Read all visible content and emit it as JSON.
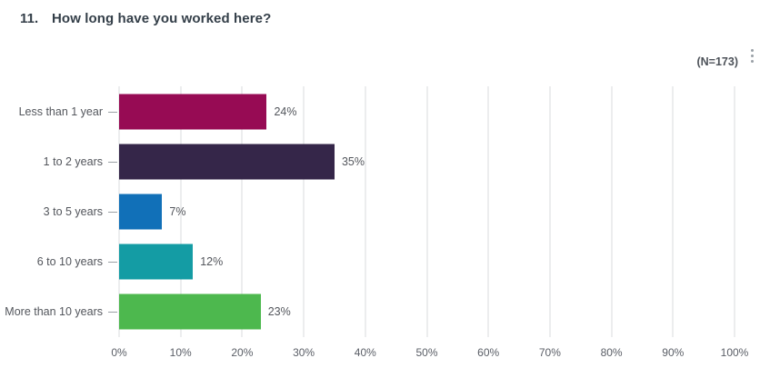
{
  "header": {
    "question_number": "11.",
    "question_title": "How long have you worked here?",
    "respondent_count": "(N=173)"
  },
  "icons": {
    "menu": "kebab-menu-icon"
  },
  "colors": {
    "title_text": "#333E48",
    "label_text": "#53565C",
    "axis_text": "#5A5E66",
    "gridline": "#D8DBDC",
    "kebab_dots": "#99A0A6"
  },
  "chart_data": {
    "type": "bar",
    "orientation": "horizontal",
    "title": "How long have you worked here?",
    "categories": [
      "Less than 1 year",
      "1 to 2 years",
      "3 to 5 years",
      "6 to 10 years",
      "More than 10 years"
    ],
    "values": [
      24,
      35,
      7,
      12,
      23
    ],
    "value_labels": [
      "24%",
      "35%",
      "7%",
      "12%",
      "23%"
    ],
    "bar_colors": [
      "#970B54",
      "#352649",
      "#1170B8",
      "#149CA4",
      "#4DB84E"
    ],
    "xlabel": "",
    "ylabel": "",
    "xlim": [
      0,
      100
    ],
    "x_tick_step": 10,
    "x_tick_labels": [
      "0%",
      "10%",
      "20%",
      "30%",
      "40%",
      "50%",
      "60%",
      "70%",
      "80%",
      "90%",
      "100%"
    ],
    "grid": true,
    "legend": false
  }
}
